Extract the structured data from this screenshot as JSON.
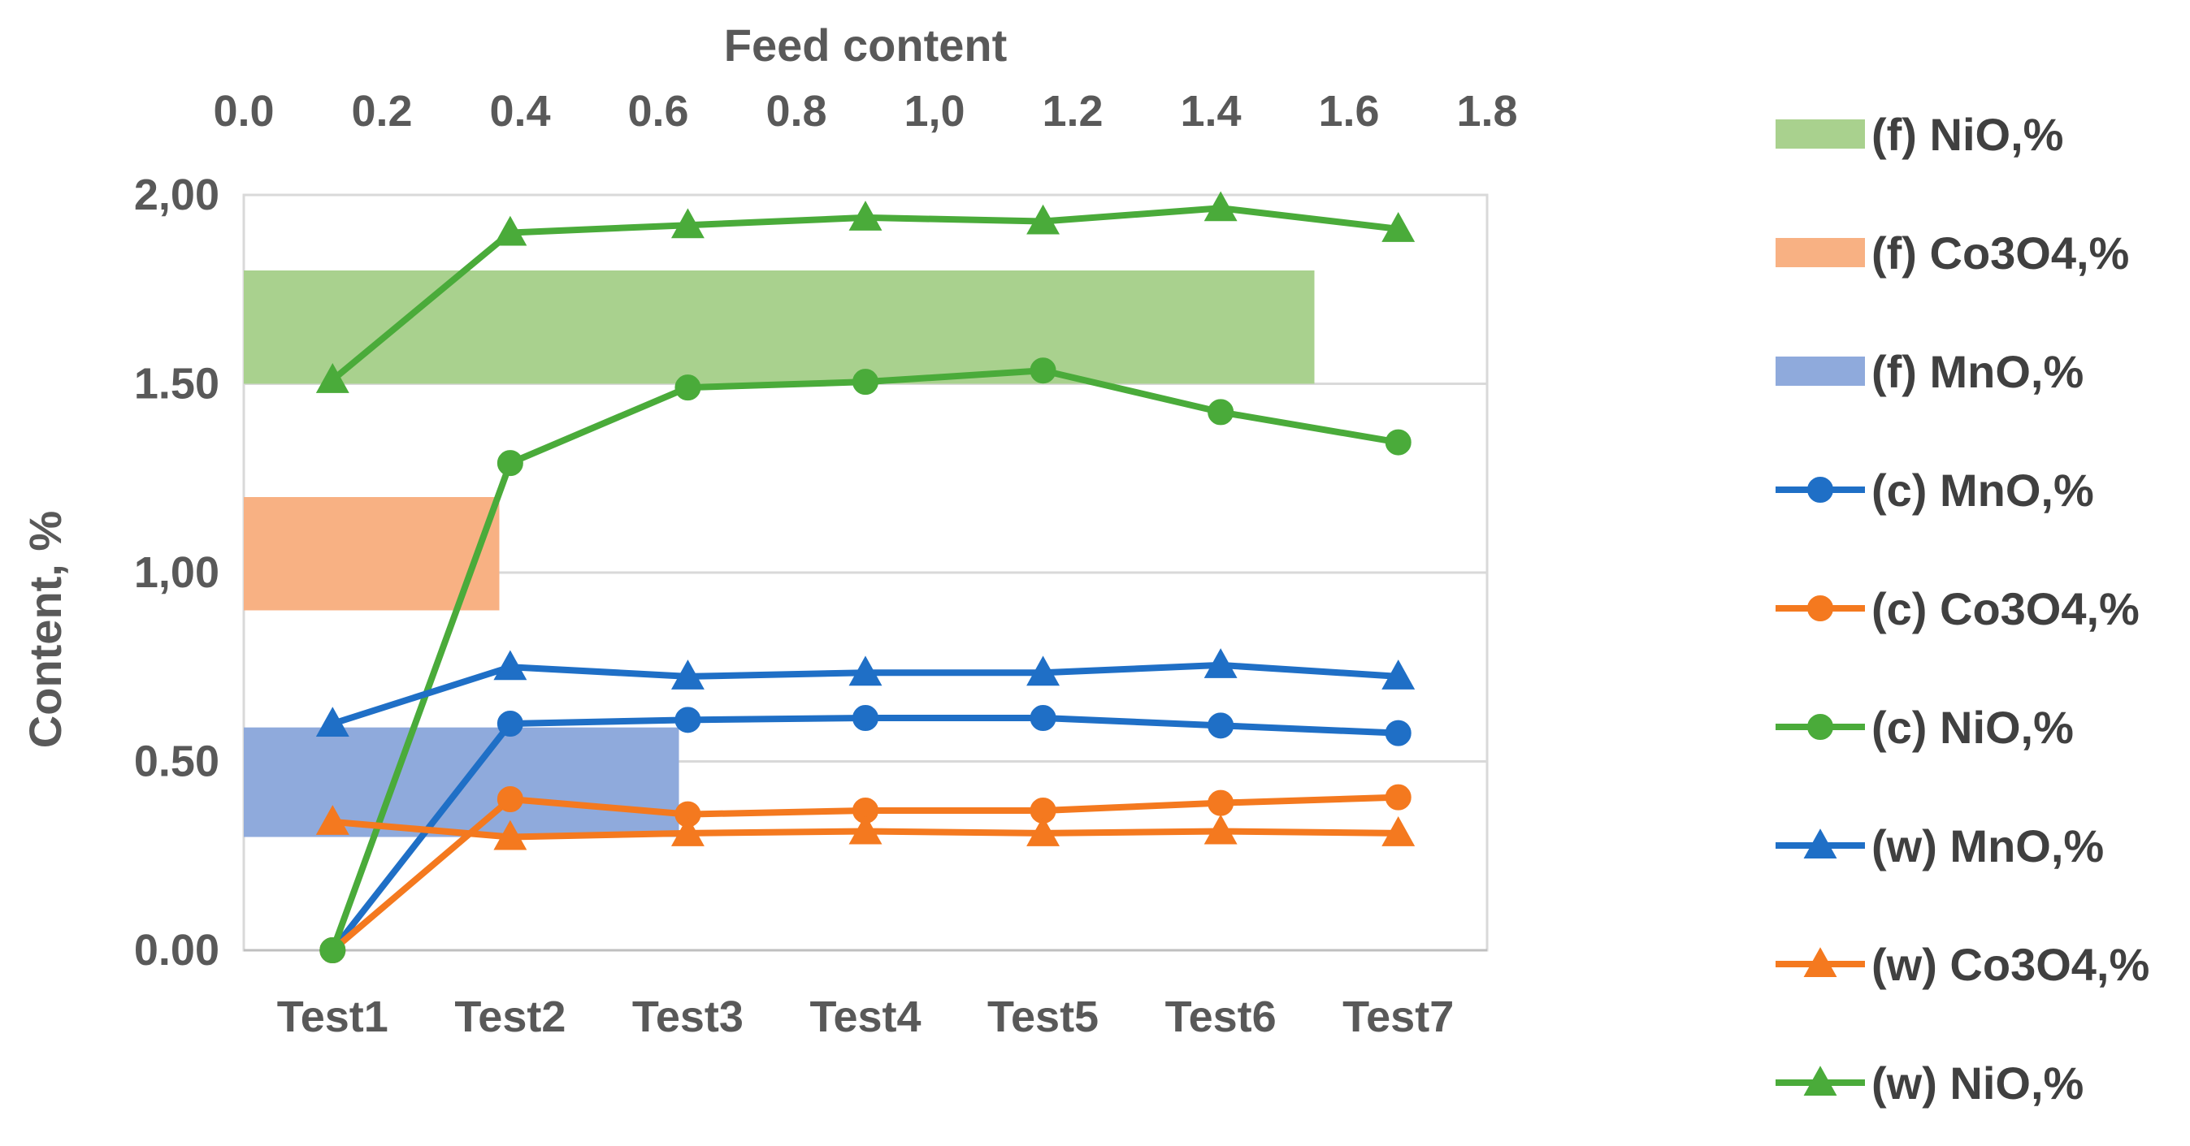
{
  "chart_data": {
    "type": "line",
    "categories": [
      "Test1",
      "Test2",
      "Test3",
      "Test4",
      "Test5",
      "Test6",
      "Test7"
    ],
    "ylabel": "Content, %",
    "ylim": [
      0,
      2
    ],
    "y_ticks": [
      "0.00",
      "0.50",
      "1,00",
      "1.50",
      "2,00"
    ],
    "x2label": "Feed content",
    "x2lim": [
      0,
      1.8
    ],
    "x2_ticks": [
      "0.0",
      "0.2",
      "0.4",
      "0.6",
      "0.8",
      "1,0",
      "1.2",
      "1.4",
      "1.6",
      "1.8"
    ],
    "grid": true,
    "legend_position": "right",
    "bands": [
      {
        "name": "(f) NiO,%",
        "color": "#a9d18e",
        "x_from": 0,
        "x_to": 1.55,
        "y_from": 1.5,
        "y_to": 1.8
      },
      {
        "name": "(f) Co3O4,%",
        "color": "#f8b183",
        "x_from": 0,
        "x_to": 0.37,
        "y_from": 0.9,
        "y_to": 1.2
      },
      {
        "name": "(f) MnO,%",
        "color": "#8faadc",
        "x_from": 0,
        "x_to": 0.63,
        "y_from": 0.3,
        "y_to": 0.59
      }
    ],
    "series": [
      {
        "name": "(c) MnO,%",
        "color": "#1f6fc6",
        "marker": "circle",
        "values": [
          0.0,
          0.6,
          0.61,
          0.615,
          0.615,
          0.595,
          0.575
        ]
      },
      {
        "name": "(c) Co3O4,%",
        "color": "#f4791f",
        "marker": "circle",
        "values": [
          0.0,
          0.4,
          0.36,
          0.37,
          0.37,
          0.39,
          0.405
        ]
      },
      {
        "name": "(c) NiO,%",
        "color": "#4aab3a",
        "marker": "circle",
        "values": [
          0.0,
          1.29,
          1.49,
          1.505,
          1.535,
          1.425,
          1.345
        ]
      },
      {
        "name": "(w) MnO,%",
        "color": "#1f6fc6",
        "marker": "triangle",
        "values": [
          0.6,
          0.75,
          0.725,
          0.735,
          0.735,
          0.755,
          0.725
        ]
      },
      {
        "name": "(w) Co3O4,%",
        "color": "#f4791f",
        "marker": "triangle",
        "values": [
          0.34,
          0.3,
          0.31,
          0.315,
          0.31,
          0.315,
          0.31
        ]
      },
      {
        "name": "(w) NiO,%",
        "color": "#4aab3a",
        "marker": "triangle",
        "values": [
          1.51,
          1.9,
          1.92,
          1.94,
          1.93,
          1.965,
          1.91
        ]
      }
    ]
  }
}
